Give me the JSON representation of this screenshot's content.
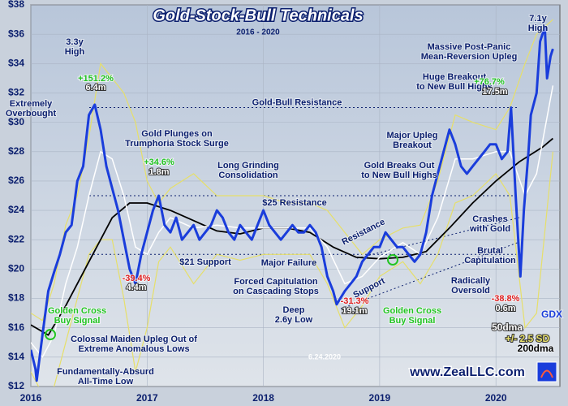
{
  "chart_data": {
    "type": "line",
    "title": "Gold-Stock-Bull Technicals",
    "subtitle": "2016 - 2020",
    "date": "6.24.2020",
    "website": "www.ZealLLC.com",
    "xlim": [
      2016,
      2020.55
    ],
    "xticks": [
      2016,
      2017,
      2018,
      2019,
      2020
    ],
    "ylim": [
      12,
      38
    ],
    "yticks": [
      {
        "value": 12,
        "label": "$12"
      },
      {
        "value": 14,
        "label": "$14"
      },
      {
        "value": 16,
        "label": "$16"
      },
      {
        "value": 18,
        "label": "$18"
      },
      {
        "value": 20,
        "label": "$20"
      },
      {
        "value": 22,
        "label": "$22"
      },
      {
        "value": 24,
        "label": "$24"
      },
      {
        "value": 26,
        "label": "$26"
      },
      {
        "value": 28,
        "label": "$28"
      },
      {
        "value": 30,
        "label": "$30"
      },
      {
        "value": 32,
        "label": "$32"
      },
      {
        "value": 34,
        "label": "$34"
      },
      {
        "value": 36,
        "label": "$36"
      },
      {
        "value": 38,
        "label": "$38"
      }
    ],
    "grid": true,
    "series": [
      {
        "name": "+/- 2.5 SD",
        "color": "#e6df6a",
        "x": [
          2016.0,
          2016.1,
          2016.2,
          2016.3,
          2016.4,
          2016.5,
          2016.6,
          2016.7,
          2016.8,
          2016.9,
          2017.0,
          2017.1,
          2017.2,
          2017.4,
          2017.6,
          2017.8,
          2018.0,
          2018.2,
          2018.4,
          2018.55,
          2018.7,
          2018.85,
          2019.0,
          2019.2,
          2019.35,
          2019.5,
          2019.65,
          2019.8,
          2020.0,
          2020.12,
          2020.25,
          2020.35,
          2020.49
        ],
        "upper": [
          17,
          16.5,
          19,
          23,
          25,
          29,
          34,
          33,
          32,
          30,
          26,
          24.5,
          25.5,
          26.5,
          25,
          25,
          25,
          24.5,
          24.5,
          24,
          22.5,
          21,
          22,
          22.8,
          23,
          26,
          30.5,
          30,
          29.5,
          31,
          34,
          36,
          37
        ],
        "lower": [
          13,
          11.5,
          12,
          15,
          18,
          21,
          22,
          22,
          18,
          13,
          16,
          20.5,
          21.5,
          19,
          21,
          20.6,
          21,
          21,
          21,
          19,
          16,
          17.5,
          19.5,
          20.5,
          19,
          21,
          24.5,
          25,
          26.5,
          25,
          16,
          17,
          28
        ]
      },
      {
        "name": "200dma",
        "color": "#000000",
        "x": [
          2016.0,
          2016.15,
          2016.3,
          2016.5,
          2016.7,
          2016.85,
          2017.0,
          2017.2,
          2017.4,
          2017.6,
          2017.8,
          2018.0,
          2018.2,
          2018.4,
          2018.6,
          2018.8,
          2019.0,
          2019.2,
          2019.4,
          2019.6,
          2019.8,
          2020.0,
          2020.2,
          2020.4,
          2020.49
        ],
        "values": [
          16.2,
          15.5,
          17.5,
          20.5,
          23.5,
          24.5,
          24.5,
          24.0,
          23.3,
          22.6,
          22.4,
          22.8,
          22.8,
          22.5,
          21.5,
          20.8,
          20.7,
          20.8,
          21.2,
          22.8,
          24.5,
          26.0,
          27.3,
          28.3,
          28.9
        ]
      },
      {
        "name": "50dma",
        "color": "#ffffff",
        "x": [
          2016.0,
          2016.1,
          2016.2,
          2016.3,
          2016.4,
          2016.5,
          2016.6,
          2016.7,
          2016.8,
          2016.9,
          2017.0,
          2017.1,
          2017.2,
          2017.4,
          2017.6,
          2017.8,
          2018.0,
          2018.2,
          2018.4,
          2018.55,
          2018.7,
          2018.85,
          2019.0,
          2019.2,
          2019.35,
          2019.5,
          2019.65,
          2019.8,
          2020.0,
          2020.12,
          2020.25,
          2020.35,
          2020.49
        ],
        "values": [
          15,
          14,
          15.5,
          19,
          21.5,
          25,
          28,
          27.5,
          25,
          21.5,
          21,
          22.5,
          23.5,
          22.8,
          23,
          22.8,
          22.8,
          22.8,
          22.8,
          21.5,
          19,
          19.5,
          20.8,
          21.8,
          21,
          23.5,
          27.5,
          27.5,
          28,
          28,
          25,
          26.5,
          32.5
        ]
      },
      {
        "name": "GDX",
        "color": "#1a3ddb",
        "x": [
          2016.0,
          2016.04,
          2016.05,
          2016.1,
          2016.15,
          2016.2,
          2016.25,
          2016.3,
          2016.35,
          2016.4,
          2016.45,
          2016.5,
          2016.55,
          2016.6,
          2016.65,
          2016.7,
          2016.75,
          2016.8,
          2016.85,
          2016.9,
          2016.95,
          2017.0,
          2017.05,
          2017.1,
          2017.15,
          2017.2,
          2017.25,
          2017.3,
          2017.35,
          2017.4,
          2017.45,
          2017.5,
          2017.55,
          2017.6,
          2017.65,
          2017.7,
          2017.75,
          2017.8,
          2017.85,
          2017.9,
          2017.95,
          2018.0,
          2018.05,
          2018.1,
          2018.15,
          2018.2,
          2018.25,
          2018.3,
          2018.35,
          2018.4,
          2018.45,
          2018.5,
          2018.55,
          2018.6,
          2018.63,
          2018.7,
          2018.75,
          2018.8,
          2018.85,
          2018.9,
          2018.95,
          2019.0,
          2019.05,
          2019.1,
          2019.15,
          2019.2,
          2019.25,
          2019.3,
          2019.35,
          2019.4,
          2019.45,
          2019.5,
          2019.55,
          2019.6,
          2019.65,
          2019.7,
          2019.75,
          2019.8,
          2019.85,
          2019.9,
          2019.95,
          2020.0,
          2020.05,
          2020.1,
          2020.13,
          2020.17,
          2020.21,
          2020.24,
          2020.28,
          2020.3,
          2020.35,
          2020.38,
          2020.42,
          2020.44,
          2020.47,
          2020.49
        ],
        "values": [
          14.5,
          13.2,
          12.4,
          15.5,
          18.5,
          19.8,
          21.0,
          22.5,
          23.0,
          26.0,
          27.0,
          30.5,
          31.2,
          29.5,
          27.0,
          25.5,
          24.0,
          22.0,
          20.0,
          19.0,
          21.0,
          22.5,
          24.0,
          25.0,
          23.0,
          22.5,
          23.5,
          22.0,
          22.5,
          23.0,
          22.0,
          22.5,
          23.0,
          24.0,
          23.5,
          22.5,
          22.0,
          23.0,
          22.5,
          22.0,
          23.0,
          24.0,
          23.0,
          22.5,
          22.0,
          22.5,
          23.0,
          22.5,
          22.5,
          23.0,
          22.5,
          21.5,
          19.5,
          18.5,
          17.6,
          18.5,
          19.0,
          19.5,
          20.5,
          21.0,
          21.5,
          21.5,
          22.5,
          22.0,
          21.5,
          21.5,
          21.0,
          20.5,
          21.0,
          22.5,
          25.0,
          26.5,
          28.0,
          29.5,
          28.5,
          27.0,
          26.5,
          27.0,
          27.5,
          28.0,
          28.5,
          28.5,
          27.5,
          28.0,
          31.0,
          25.0,
          19.5,
          24.0,
          28.0,
          30.5,
          32.0,
          35.5,
          36.5,
          33.0,
          34.5,
          35.0
        ]
      }
    ],
    "reference_lines": [
      {
        "label": "Gold-Bull Resistance",
        "value": 31
      },
      {
        "label": "$25 Resistance",
        "value": 25
      },
      {
        "label": "$21 Support",
        "value": 21
      }
    ],
    "annotations": [
      {
        "lines": [
          "3.3y",
          "High"
        ]
      },
      {
        "lines": [
          "+151.2%"
        ],
        "color": "#22c422"
      },
      {
        "lines": [
          "6.4m"
        ],
        "color": "#ffffff"
      },
      {
        "lines": [
          "Extremely",
          "Overbought"
        ]
      },
      {
        "lines": [
          "Gold Plunges on",
          "Trumphoria Stock Surge"
        ]
      },
      {
        "lines": [
          "+34.6%"
        ],
        "color": "#22c422"
      },
      {
        "lines": [
          "1.8m"
        ],
        "color": "#ffffff"
      },
      {
        "lines": [
          "Long Grinding",
          "Consolidation"
        ]
      },
      {
        "lines": [
          "-39.4%"
        ],
        "color": "#e02020"
      },
      {
        "lines": [
          "4.4m"
        ],
        "color": "#ffffff"
      },
      {
        "lines": [
          "Golden Cross",
          "Buy Signal"
        ],
        "color": "#22c422"
      },
      {
        "lines": [
          "Colossal Maiden Upleg Out of",
          "Extreme Anomalous Lows"
        ]
      },
      {
        "lines": [
          "Fundamentally-Absurd",
          "All-Time Low"
        ]
      },
      {
        "lines": [
          "Major Failure"
        ]
      },
      {
        "lines": [
          "Forced Capitulation",
          "on Cascading Stops"
        ]
      },
      {
        "lines": [
          "Deep",
          "2.6y Low"
        ]
      },
      {
        "lines": [
          "-31.3%"
        ],
        "color": "#e02020"
      },
      {
        "lines": [
          "19.1m"
        ],
        "color": "#ffffff"
      },
      {
        "lines": [
          "Golden Cross",
          "Buy Signal"
        ],
        "color": "#22c422"
      },
      {
        "lines": [
          "Gold Breaks Out",
          "to New Bull Highs"
        ]
      },
      {
        "lines": [
          "Major Upleg",
          "Breakout"
        ]
      },
      {
        "lines": [
          "Resistance"
        ]
      },
      {
        "lines": [
          "Support"
        ]
      },
      {
        "lines": [
          "Massive Post-Panic",
          "Mean-Reversion Upleg"
        ]
      },
      {
        "lines": [
          "Huge Breakout",
          "to New Bull Highs"
        ]
      },
      {
        "lines": [
          "+76.7%"
        ],
        "color": "#22c422"
      },
      {
        "lines": [
          "17.5m"
        ],
        "color": "#ffffff"
      },
      {
        "lines": [
          "7.1y",
          "High"
        ]
      },
      {
        "lines": [
          "Crashes",
          "with Gold"
        ]
      },
      {
        "lines": [
          "Brutal",
          "Capitulation"
        ]
      },
      {
        "lines": [
          "Radically",
          "Oversold"
        ]
      },
      {
        "lines": [
          "-38.8%"
        ],
        "color": "#e02020"
      },
      {
        "lines": [
          "0.6m"
        ],
        "color": "#ffffff"
      }
    ]
  }
}
